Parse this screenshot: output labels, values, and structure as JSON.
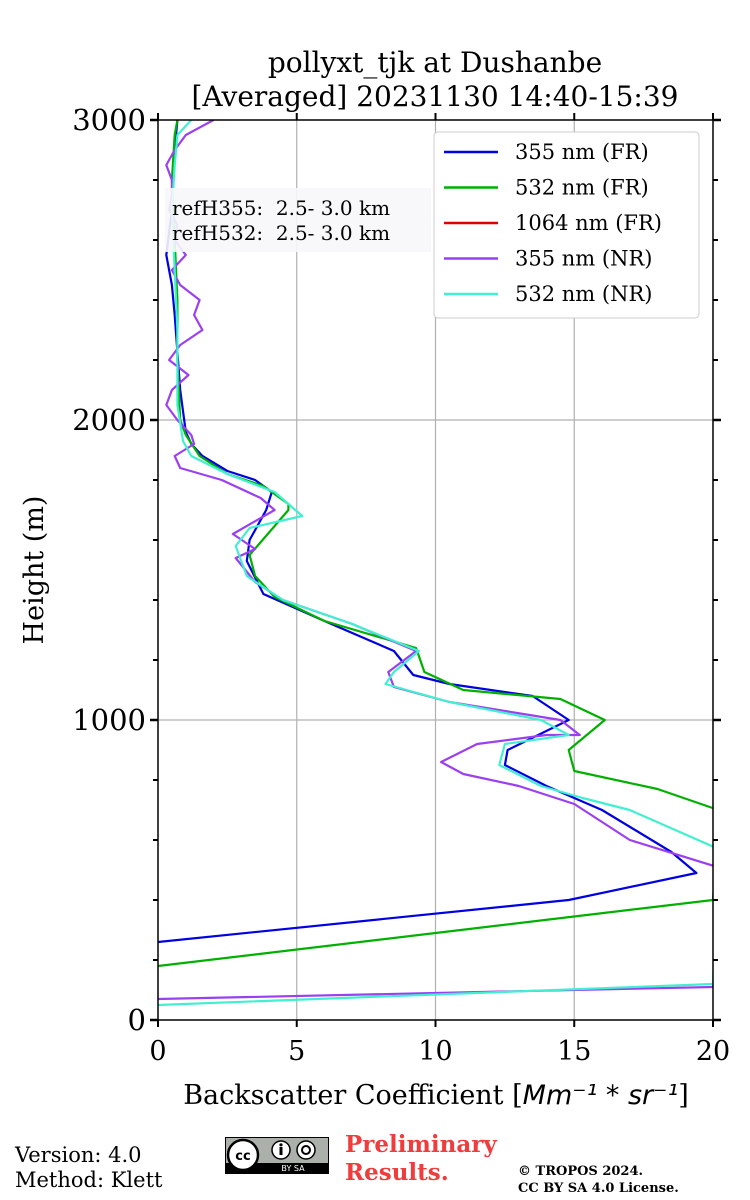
{
  "chart_data": {
    "type": "line",
    "title_line1": "pollyxt_tjk at Dushanbe",
    "title_line2": "[Averaged] 20231130 14:40-15:39",
    "xlabel": "Backscatter Coefficient [",
    "xlabel_unit": "Mm⁻¹ * sr⁻¹",
    "xlabel_close": "]",
    "ylabel": "Height (m)",
    "xlim": [
      0,
      20
    ],
    "ylim": [
      0,
      3000
    ],
    "x_ticks": [
      0,
      5,
      10,
      15,
      20
    ],
    "x_tick_labels": [
      "0",
      "5",
      "10",
      "15",
      "20"
    ],
    "y_ticks": [
      0,
      1000,
      2000,
      3000
    ],
    "y_tick_labels": [
      "0",
      "1000",
      "2000",
      "3000"
    ],
    "grid": true,
    "legend_position": "top-right",
    "annotations": [
      "refH355:  2.5- 3.0 km",
      "refH532:  2.5- 3.0 km"
    ],
    "series": [
      {
        "name": "355 nm (FR)",
        "color": "#0000e0",
        "x": [
          0,
          14.8,
          19.4,
          18.5,
          16,
          14,
          12.5,
          12.6,
          14.8,
          13.5,
          10.5,
          9.2,
          8.5,
          6,
          3.8,
          3.2,
          3.3,
          3.9,
          4.1,
          3.5,
          2.5,
          1.6,
          1.2,
          1.0,
          0.8,
          0.6,
          0.5,
          0.3,
          0.5,
          0.6,
          0.7
        ],
        "y": [
          260,
          400,
          490,
          560,
          700,
          780,
          850,
          900,
          1000,
          1080,
          1120,
          1150,
          1230,
          1330,
          1420,
          1530,
          1600,
          1700,
          1760,
          1800,
          1830,
          1880,
          1920,
          1960,
          2100,
          2350,
          2450,
          2550,
          2700,
          2900,
          3000
        ]
      },
      {
        "name": "532 nm (FR)",
        "color": "#00b000",
        "x": [
          0,
          20,
          20.2,
          18,
          15,
          14.8,
          16.1,
          14.5,
          11,
          9.6,
          9.3,
          6,
          4.2,
          3.5,
          3.3,
          4.7,
          4.7,
          3.8,
          2.5,
          1.5,
          1.0,
          0.8,
          0.7,
          0.7,
          0.6,
          0.5,
          0.6,
          0.7
        ],
        "y": [
          180,
          400,
          700,
          770,
          830,
          900,
          1000,
          1070,
          1100,
          1160,
          1240,
          1330,
          1410,
          1480,
          1550,
          1700,
          1720,
          1780,
          1820,
          1880,
          1950,
          2000,
          2200,
          2400,
          2600,
          2800,
          2950,
          3000
        ]
      },
      {
        "name": "1064 nm (FR)",
        "color": "#e00000",
        "x": [],
        "y": []
      },
      {
        "name": "355 nm (NR)",
        "color": "#9b40f0",
        "x": [
          0,
          20,
          20.5,
          17,
          15,
          13,
          11,
          10.2,
          11.5,
          14,
          15.2,
          14.5,
          10.5,
          8.5,
          8.3,
          9.3,
          7,
          4.5,
          3.5,
          2.8,
          3.5,
          2.7,
          4.2,
          3.7,
          2.3,
          0.8,
          0.6,
          1.3,
          1.2,
          0.7,
          0.3,
          0.5,
          1.1,
          0.4,
          0.8,
          1.6,
          1.3,
          1.5,
          0.8,
          0.5,
          1.0,
          0.6,
          0.7,
          0.4,
          0.5,
          0.5,
          0.3,
          0.6,
          1.0,
          2.0
        ],
        "y": [
          70,
          110,
          500,
          600,
          720,
          780,
          820,
          860,
          920,
          950,
          950,
          1000,
          1060,
          1110,
          1160,
          1230,
          1320,
          1400,
          1460,
          1540,
          1570,
          1620,
          1700,
          1740,
          1800,
          1840,
          1880,
          1920,
          1950,
          2000,
          2050,
          2100,
          2150,
          2200,
          2250,
          2300,
          2350,
          2400,
          2450,
          2500,
          2550,
          2600,
          2650,
          2700,
          2750,
          2800,
          2850,
          2900,
          2950,
          3000
        ]
      },
      {
        "name": "532 nm (NR)",
        "color": "#40f0d0",
        "x": [
          0,
          20,
          20.2,
          17,
          15.3,
          13.8,
          12.3,
          12.5,
          14.8,
          13.8,
          10.5,
          8.2,
          8.5,
          9.4,
          7,
          4.5,
          3.2,
          2.8,
          3.3,
          5.2,
          4.2,
          2.5,
          1.2,
          0.9,
          0.7,
          0.7,
          0.6,
          0.5,
          0.6,
          0.7,
          1.2
        ],
        "y": [
          50,
          120,
          570,
          700,
          740,
          780,
          850,
          920,
          950,
          1000,
          1060,
          1120,
          1160,
          1230,
          1320,
          1400,
          1480,
          1580,
          1640,
          1680,
          1760,
          1820,
          1880,
          1930,
          2050,
          2300,
          2500,
          2700,
          2850,
          2950,
          3000
        ]
      }
    ]
  },
  "footer": {
    "version": "Version: 4.0",
    "method": "Method: Klett",
    "prelim_line1": "Preliminary",
    "prelim_line2": "Results.",
    "copyright_line1": "© TROPOS 2024.",
    "copyright_line2": "CC BY SA 4.0 License.",
    "cc_logo_text": "BY SA"
  }
}
